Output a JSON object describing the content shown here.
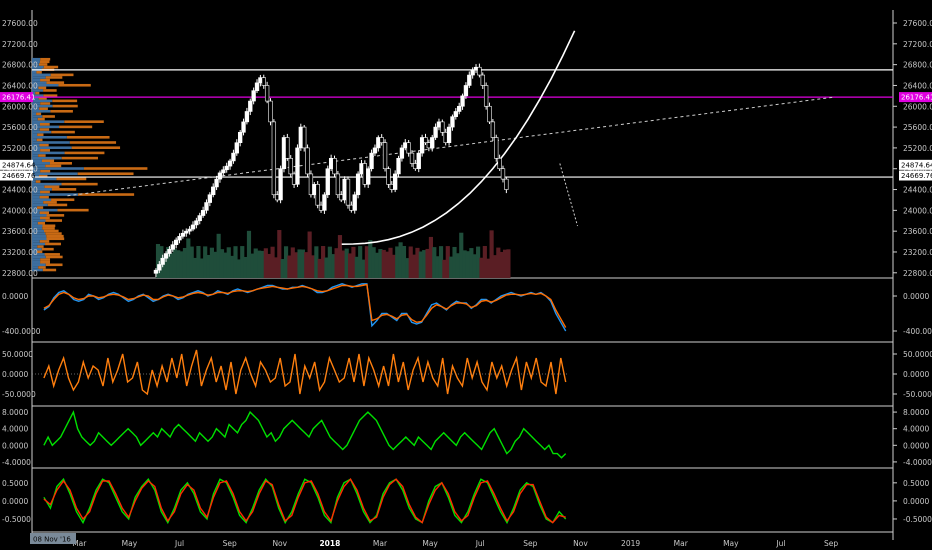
{
  "chart_data": [
    {
      "type": "candlestick",
      "panel": "price",
      "y_ticks": [
        "27600.00",
        "27200.00",
        "26800.00",
        "26400.00",
        "26000.00",
        "25600.00",
        "25200.00",
        "24800.00",
        "24400.00",
        "24000.00",
        "23600.00",
        "23200.00",
        "22800.00"
      ],
      "y_tick_values": [
        27600,
        27200,
        26800,
        26400,
        26000,
        25600,
        25200,
        24800,
        24400,
        24000,
        23600,
        23200,
        22800
      ],
      "ylim": [
        22700,
        27850
      ],
      "grid": false,
      "x_ticks": [
        "Mar",
        "May",
        "Jul",
        "Sep",
        "Nov",
        "2018",
        "Mar",
        "May",
        "Jul",
        "Sep",
        "Nov",
        "2019",
        "Mar",
        "May",
        "Jul",
        "Sep"
      ],
      "x_tick_bold": [
        false,
        false,
        false,
        false,
        false,
        true,
        false,
        false,
        false,
        false,
        false,
        false,
        false,
        false,
        false,
        false
      ],
      "x_tick_index": [
        14,
        31,
        48,
        65,
        82,
        99,
        116,
        133,
        150,
        167,
        184,
        201,
        218,
        235,
        252,
        269
      ],
      "date_tag": "08 Nov '16",
      "price_labels": [
        {
          "text": "26176.41",
          "value": 26176.41,
          "color": "#e000e0"
        },
        {
          "text": "24874.64",
          "value": 24874.64,
          "color": "#ffffff"
        },
        {
          "text": "24669.76",
          "value": 24669.76,
          "color": "#ffffff"
        }
      ],
      "horizontal_lines": [
        {
          "value": 26700,
          "color": "#ffffff"
        },
        {
          "value": 26176.41,
          "color": "#e000e0"
        },
        {
          "value": 24640,
          "color": "#ffffff"
        }
      ],
      "trendline_dashed": {
        "from": [
          10,
          24280
        ],
        "to": [
          270,
          26176
        ]
      },
      "closes": [
        22850,
        22960,
        23080,
        23170,
        23250,
        23340,
        23430,
        23500,
        23560,
        23600,
        23640,
        23720,
        23800,
        23900,
        24000,
        24150,
        24300,
        24450,
        24600,
        24720,
        24780,
        24850,
        24950,
        25100,
        25300,
        25500,
        25700,
        25900,
        26100,
        26300,
        26450,
        26550,
        26400,
        26100,
        25700,
        24300,
        24200,
        24800,
        25400,
        25000,
        24700,
        24500,
        25200,
        25600,
        25200,
        24700,
        24300,
        24500,
        24100,
        24000,
        24300,
        24800,
        25000,
        24700,
        24300,
        24200,
        24600,
        24100,
        24000,
        24300,
        24700,
        24900,
        24500,
        24800,
        25100,
        25200,
        25400,
        25300,
        24800,
        24500,
        24400,
        24700,
        25000,
        25200,
        25300,
        25100,
        24900,
        24800,
        25100,
        25400,
        25300,
        25200,
        25400,
        25600,
        25700,
        25500,
        25300,
        25600,
        25800,
        25900,
        26000,
        26200,
        26400,
        26600,
        26700,
        26750,
        26600,
        26400,
        26000,
        25700,
        25400,
        25000,
        24800,
        24600,
        24400
      ]
    },
    {
      "type": "line",
      "panel": "macd",
      "y_ticks": [
        "0.0000",
        "-400.0000"
      ],
      "y_tick_values": [
        0,
        -400
      ],
      "ylim": [
        -480,
        160
      ],
      "series": [
        {
          "color": "#2196f3",
          "values": [
            -160,
            -120,
            -20,
            40,
            60,
            20,
            -40,
            -60,
            -40,
            20,
            0,
            -40,
            -20,
            20,
            40,
            20,
            -20,
            -60,
            -40,
            0,
            20,
            -20,
            -60,
            -40,
            0,
            20,
            0,
            -40,
            -20,
            20,
            40,
            60,
            40,
            0,
            20,
            60,
            40,
            20,
            60,
            80,
            60,
            40,
            60,
            80,
            100,
            120,
            120,
            100,
            80,
            80,
            100,
            100,
            120,
            100,
            80,
            40,
            40,
            60,
            100,
            120,
            140,
            120,
            100,
            120,
            140,
            140,
            -340,
            -280,
            -200,
            -200,
            -240,
            -280,
            -200,
            -200,
            -300,
            -320,
            -300,
            -200,
            -100,
            -80,
            -120,
            -160,
            -100,
            -60,
            -80,
            -80,
            -140,
            -100,
            -40,
            -40,
            -80,
            -40,
            0,
            20,
            40,
            20,
            0,
            20,
            40,
            20,
            40,
            0,
            -60,
            -200,
            -300,
            -400
          ]
        },
        {
          "color": "#ff6d00",
          "values": [
            -140,
            -110,
            -40,
            20,
            40,
            20,
            -20,
            -40,
            -30,
            0,
            0,
            -20,
            -10,
            10,
            20,
            10,
            -10,
            -40,
            -30,
            -10,
            10,
            0,
            -40,
            -40,
            -10,
            10,
            0,
            -20,
            -10,
            10,
            30,
            40,
            30,
            10,
            20,
            40,
            40,
            30,
            50,
            60,
            60,
            50,
            60,
            80,
            90,
            100,
            110,
            100,
            90,
            80,
            90,
            100,
            110,
            100,
            80,
            60,
            50,
            60,
            80,
            100,
            120,
            120,
            110,
            110,
            120,
            130,
            -280,
            -260,
            -220,
            -210,
            -230,
            -260,
            -220,
            -210,
            -270,
            -300,
            -290,
            -220,
            -140,
            -100,
            -120,
            -150,
            -110,
            -80,
            -80,
            -90,
            -130,
            -110,
            -60,
            -50,
            -70,
            -50,
            -20,
            10,
            20,
            20,
            10,
            20,
            30,
            20,
            30,
            0,
            -40,
            -160,
            -260,
            -360
          ]
        }
      ]
    },
    {
      "type": "line",
      "panel": "momentum",
      "y_ticks": [
        "50.0000",
        "0.0000",
        "-50.0000"
      ],
      "y_tick_values": [
        50,
        0,
        -50
      ],
      "ylim": [
        -70,
        70
      ],
      "series": [
        {
          "color": "#ff7f0e",
          "values": [
            -10,
            20,
            -30,
            10,
            40,
            -10,
            -40,
            -20,
            30,
            -10,
            20,
            10,
            -30,
            40,
            -20,
            10,
            50,
            -20,
            -10,
            30,
            -40,
            -50,
            10,
            -30,
            20,
            -20,
            40,
            -10,
            50,
            -30,
            20,
            60,
            -30,
            10,
            40,
            -20,
            20,
            -40,
            30,
            -50,
            10,
            40,
            0,
            -30,
            30,
            10,
            -20,
            -10,
            40,
            -30,
            -20,
            50,
            -50,
            20,
            -10,
            30,
            -40,
            -20,
            40,
            10,
            -20,
            -10,
            40,
            -20,
            50,
            -30,
            40,
            10,
            -30,
            20,
            -30,
            50,
            -20,
            30,
            -40,
            10,
            40,
            -20,
            30,
            -10,
            -30,
            40,
            -50,
            20,
            -10,
            -30,
            40,
            -10,
            30,
            -20,
            -40,
            30,
            -10,
            20,
            -30,
            10,
            40,
            -40,
            30,
            -10,
            40,
            -20,
            -30,
            30,
            -50,
            40,
            -20
          ]
        }
      ]
    },
    {
      "type": "line",
      "panel": "oscillator",
      "y_ticks": [
        "8.0000",
        "4.0000",
        "0.0000",
        "-4.0000"
      ],
      "y_tick_values": [
        8,
        4,
        0,
        -4
      ],
      "ylim": [
        -4.5,
        8.5
      ],
      "series": [
        {
          "color": "#00e000",
          "values": [
            0,
            2,
            0,
            1,
            2,
            4,
            6,
            8,
            4,
            2,
            1,
            0,
            1,
            3,
            2,
            1,
            0,
            1,
            2,
            3,
            4,
            3,
            2,
            0,
            1,
            2,
            3,
            2,
            4,
            3,
            2,
            4,
            5,
            4,
            3,
            2,
            1,
            3,
            2,
            1,
            2,
            4,
            3,
            2,
            5,
            4,
            3,
            5,
            6,
            8,
            7,
            6,
            4,
            2,
            3,
            1,
            2,
            4,
            5,
            6,
            5,
            4,
            3,
            2,
            4,
            5,
            6,
            4,
            2,
            1,
            0,
            -1,
            0,
            2,
            4,
            6,
            7,
            8,
            7,
            6,
            4,
            2,
            0,
            -1,
            0,
            1,
            2,
            1,
            0,
            2,
            1,
            0,
            -1,
            1,
            2,
            3,
            2,
            1,
            0,
            2,
            3,
            2,
            1,
            0,
            -1,
            1,
            3,
            4,
            2,
            0,
            -2,
            -1,
            1,
            2,
            4,
            3,
            2,
            1,
            0,
            -1,
            0,
            -2,
            -2,
            -3,
            -2
          ]
        }
      ]
    },
    {
      "type": "line",
      "panel": "stochastic",
      "y_ticks": [
        "0.5000",
        "0.0000",
        "-0.5000"
      ],
      "y_tick_values": [
        0.5,
        0,
        -0.5
      ],
      "ylim": [
        -0.75,
        0.8
      ],
      "series": [
        {
          "color": "#00e000",
          "values": [
            0.1,
            -0.2,
            0.4,
            0.6,
            0.2,
            -0.3,
            -0.6,
            -0.2,
            0.3,
            0.6,
            0.5,
            0.1,
            -0.3,
            -0.5,
            0.1,
            0.4,
            0.6,
            0.3,
            -0.3,
            -0.6,
            -0.2,
            0.3,
            0.5,
            0.2,
            -0.3,
            -0.5,
            0.2,
            0.6,
            0.5,
            0.1,
            -0.4,
            -0.6,
            -0.2,
            0.3,
            0.6,
            0.4,
            -0.2,
            -0.6,
            -0.3,
            0.2,
            0.6,
            0.5,
            0.1,
            -0.4,
            -0.6,
            0.1,
            0.5,
            0.6,
            0.2,
            -0.3,
            -0.6,
            -0.4,
            0.2,
            0.5,
            0.6,
            0.3,
            -0.2,
            -0.5,
            -0.6,
            0.0,
            0.4,
            0.5,
            0.1,
            -0.4,
            -0.6,
            -0.3,
            0.2,
            0.6,
            0.5,
            0.1,
            -0.3,
            -0.6,
            -0.2,
            0.3,
            0.5,
            0.4,
            -0.1,
            -0.5,
            -0.6,
            -0.3,
            -0.5
          ]
        },
        {
          "color": "#ff2a00",
          "values": [
            0.05,
            -0.1,
            0.3,
            0.55,
            0.3,
            -0.2,
            -0.5,
            -0.3,
            0.2,
            0.55,
            0.55,
            0.2,
            -0.2,
            -0.45,
            0.0,
            0.35,
            0.55,
            0.4,
            -0.2,
            -0.55,
            -0.3,
            0.2,
            0.45,
            0.3,
            -0.2,
            -0.45,
            0.1,
            0.5,
            0.55,
            0.2,
            -0.3,
            -0.55,
            -0.3,
            0.2,
            0.55,
            0.45,
            -0.1,
            -0.55,
            -0.4,
            0.1,
            0.5,
            0.55,
            0.2,
            -0.3,
            -0.55,
            0.0,
            0.4,
            0.6,
            0.3,
            -0.2,
            -0.55,
            -0.45,
            0.1,
            0.45,
            0.6,
            0.4,
            -0.1,
            -0.45,
            -0.6,
            -0.1,
            0.3,
            0.5,
            0.2,
            -0.3,
            -0.55,
            -0.4,
            0.1,
            0.5,
            0.55,
            0.2,
            -0.2,
            -0.55,
            -0.3,
            0.2,
            0.45,
            0.45,
            0.0,
            -0.45,
            -0.6,
            -0.4,
            -0.45
          ]
        }
      ]
    }
  ]
}
